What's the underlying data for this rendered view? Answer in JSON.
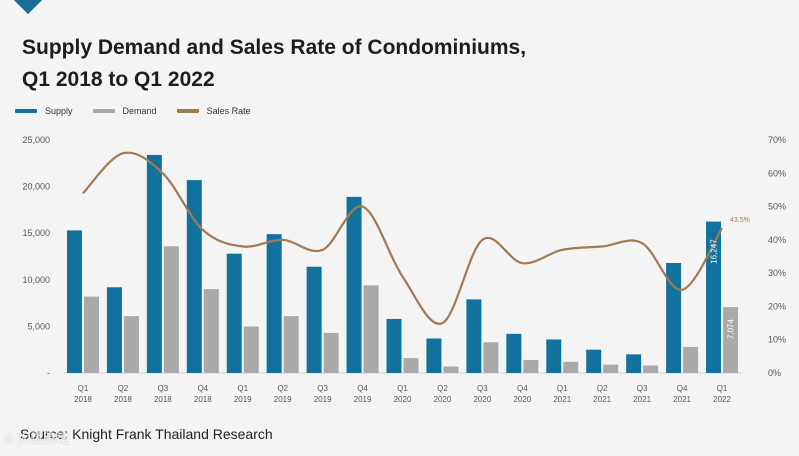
{
  "page": {
    "title_line1": "Supply Demand and Sales Rate of Condominiums,",
    "title_line2": "Q1 2018 to Q1 2022",
    "source": "Source: Knight Frank Thailand Research",
    "watermark": "© 大数跨境"
  },
  "colors": {
    "supply": "#12729e",
    "demand": "#a9a9ac",
    "sales_rate": "#a17a51",
    "axis_text": "#555555"
  },
  "chart_data": {
    "type": "bar",
    "title": "Supply Demand and Sales Rate of Condominiums, Q1 2018 to Q1 2022",
    "categories": [
      [
        "Q1",
        "2018"
      ],
      [
        "Q2",
        "2018"
      ],
      [
        "Q3",
        "2018"
      ],
      [
        "Q4",
        "2018"
      ],
      [
        "Q1",
        "2019"
      ],
      [
        "Q2",
        "2019"
      ],
      [
        "Q3",
        "2019"
      ],
      [
        "Q4",
        "2019"
      ],
      [
        "Q1",
        "2020"
      ],
      [
        "Q2",
        "2020"
      ],
      [
        "Q3",
        "2020"
      ],
      [
        "Q4",
        "2020"
      ],
      [
        "Q1",
        "2021"
      ],
      [
        "Q2",
        "2021"
      ],
      [
        "Q3",
        "2021"
      ],
      [
        "Q4",
        "2021"
      ],
      [
        "Q1",
        "2022"
      ]
    ],
    "series": [
      {
        "name": "Supply",
        "type": "bar",
        "axis": "left",
        "values": [
          15300,
          9200,
          23400,
          20700,
          12800,
          14900,
          11400,
          18900,
          5800,
          3700,
          7900,
          4200,
          3600,
          2500,
          2000,
          11800,
          16247
        ]
      },
      {
        "name": "Demand",
        "type": "bar",
        "axis": "left",
        "values": [
          8200,
          6100,
          13600,
          9000,
          5000,
          6100,
          4300,
          9400,
          1600,
          700,
          3300,
          1400,
          1200,
          900,
          800,
          2800,
          7074
        ]
      },
      {
        "name": "Sales Rate",
        "type": "line",
        "axis": "right",
        "values": [
          54,
          66,
          60,
          43,
          38,
          40,
          37,
          50,
          29,
          15,
          40,
          33,
          37,
          38,
          39,
          25,
          43.5
        ]
      }
    ],
    "y_left": {
      "min": 0,
      "max": 25000,
      "ticks": [
        "-",
        "5,000",
        "10,000",
        "15,000",
        "20,000",
        "25,000"
      ]
    },
    "y_right": {
      "min": 0,
      "max": 70,
      "ticks": [
        "0%",
        "10%",
        "20%",
        "30%",
        "40%",
        "50%",
        "60%",
        "70%"
      ]
    },
    "data_labels": {
      "supply_last": "16,247",
      "demand_last": "7,074",
      "sales_rate_last": "43.5%"
    },
    "legend": "top-left",
    "grid": false
  }
}
